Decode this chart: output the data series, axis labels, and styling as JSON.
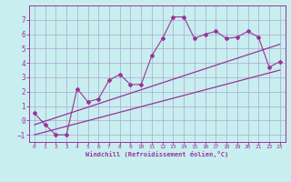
{
  "title": "",
  "xlabel": "Windchill (Refroidissement éolien,°C)",
  "ylabel": "",
  "bg_color": "#c8eef0",
  "grid_color": "#aaaacc",
  "line_color": "#993399",
  "xlim": [
    -0.5,
    23.5
  ],
  "ylim": [
    -1.5,
    8.0
  ],
  "yticks": [
    -1,
    0,
    1,
    2,
    3,
    4,
    5,
    6,
    7
  ],
  "xticks": [
    0,
    1,
    2,
    3,
    4,
    5,
    6,
    7,
    8,
    9,
    10,
    11,
    12,
    13,
    14,
    15,
    16,
    17,
    18,
    19,
    20,
    21,
    22,
    23
  ],
  "line1_x": [
    0,
    1,
    2,
    3,
    4,
    5,
    6,
    7,
    8,
    9,
    10,
    11,
    12,
    13,
    14,
    15,
    16,
    17,
    18,
    19,
    20,
    21,
    22,
    23
  ],
  "line1_y": [
    0.5,
    -0.3,
    -1.0,
    -1.0,
    2.2,
    1.3,
    1.5,
    2.8,
    3.2,
    2.5,
    2.5,
    4.5,
    5.7,
    7.2,
    7.2,
    5.7,
    6.0,
    6.2,
    5.7,
    5.8,
    6.2,
    5.8,
    3.7,
    4.1
  ],
  "line2_x": [
    0,
    23
  ],
  "line2_y": [
    -1.0,
    3.5
  ],
  "line3_x": [
    0,
    23
  ],
  "line3_y": [
    -0.3,
    5.3
  ]
}
